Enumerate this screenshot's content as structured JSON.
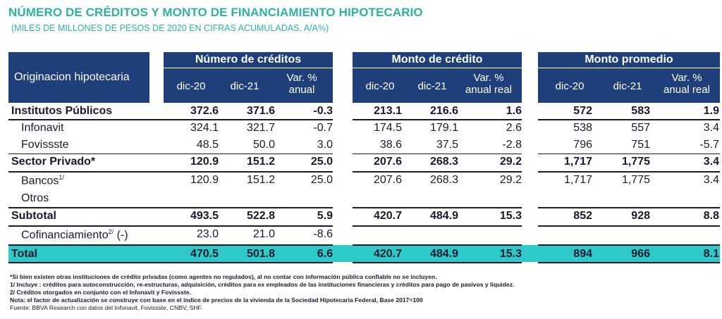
{
  "title": "NÚMERO DE CRÉDITOS Y MONTO DE FINANCIAMIENTO HIPOTECARIO",
  "subtitle": "(MILES DE MILLONES DE PESOS DE 2020 EN CIFRAS ACUMULADAS,  A/A%)",
  "header": {
    "row_label": "Originacion hipotecaria",
    "groups": [
      {
        "name": "Número de créditos",
        "cols": [
          "dic-20",
          "dic-21",
          "Var. %",
          "anual"
        ]
      },
      {
        "name": "Monto de crédito",
        "cols": [
          "dic-20",
          "dic-21",
          "Var. %",
          "anual real"
        ]
      },
      {
        "name": "Monto promedio",
        "cols": [
          "dic-20",
          "dic-21",
          "Var. %",
          "anual real"
        ]
      }
    ]
  },
  "rows": [
    {
      "label": "Institutos Públicos",
      "v": [
        "372.6",
        "371.6",
        "-0.3",
        "213.1",
        "216.6",
        "1.6",
        "572",
        "583",
        "1.9"
      ]
    },
    {
      "label": "Infonavit",
      "v": [
        "324.1",
        "321.7",
        "-0.7",
        "174.5",
        "179.1",
        "2.6",
        "538",
        "557",
        "3.4"
      ]
    },
    {
      "label": "Fovissste",
      "v": [
        "48.5",
        "50.0",
        "3.0",
        "38.6",
        "37.5",
        "-2.8",
        "796",
        "751",
        "-5.7"
      ]
    },
    {
      "label": "Sector Privado*",
      "v": [
        "120.9",
        "151.2",
        "25.0",
        "207.6",
        "268.3",
        "29.2",
        "1,717",
        "1,775",
        "3.4"
      ]
    },
    {
      "label": "Bancos",
      "sup": "1/",
      "v": [
        "120.9",
        "151.2",
        "25.0",
        "207.6",
        "268.3",
        "29.2",
        "1,717",
        "1,775",
        "3.4"
      ]
    },
    {
      "label": "Otros",
      "v": [
        "",
        "",
        "",
        "",
        "",
        "",
        "",
        "",
        ""
      ]
    },
    {
      "label": "Subtotal",
      "v": [
        "493.5",
        "522.8",
        "5.9",
        "420.7",
        "484.9",
        "15.3",
        "852",
        "928",
        "8.8"
      ]
    },
    {
      "label": "Cofinanciamiento",
      "sup": "2/",
      "suffix": " (-)",
      "v": [
        "23.0",
        "21.0",
        "-8.6",
        "",
        "",
        "",
        "",
        "",
        ""
      ]
    },
    {
      "label": "Total",
      "v": [
        "470.5",
        "501.8",
        "6.6",
        "420.7",
        "484.9",
        "15.3",
        "894",
        "966",
        "8.1"
      ]
    }
  ],
  "footnotes": [
    "*Si bien existen otras instituciones de crédito privadas (como agentes no regulados), al no contar con información pública confiable no se incluyen.",
    "1/ Incluye : créditos para autoconstrucción, re-estructuras, adquisición, créditos para ex empleados de las instituciones financieras y créditos para pago de pasivos y liquidez.",
    "2/ Créditos otorgados en conjunto con el Infonavit y Fovissste.",
    "Nota: el factor de actualización se construye con base en el índice de precios de la vivienda de la Sociedad Hipotecaria Federal, Base 2017=100"
  ],
  "source": "Fuente: BBVA Research con datos del Infonavit, Fovissste, CNBV, SHF."
}
